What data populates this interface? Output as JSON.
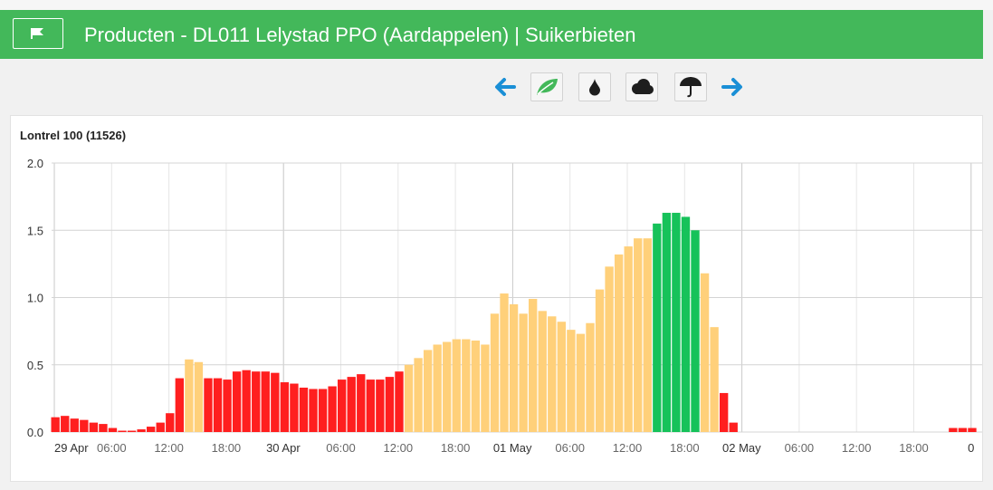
{
  "header": {
    "title": "Producten - DL011 Lelystad PPO (Aardappelen) | Suikerbieten",
    "color": "#43b85a"
  },
  "toolbar": {
    "buttons": [
      "arrow-left-icon",
      "leaf-icon",
      "drop-icon",
      "cloud-icon",
      "umbrella-icon",
      "arrow-right-icon"
    ],
    "arrow_color": "#1a8fd6",
    "leaf_color": "#43b85a"
  },
  "chart_data": {
    "type": "bar",
    "title": "Lontrel 100 (11526)",
    "xlabel": "",
    "ylabel": "",
    "ylim": [
      0,
      2.0
    ],
    "y_ticks": [
      "0.0",
      "0.5",
      "1.0",
      "1.5",
      "2.0"
    ],
    "x_ticks": [
      "29 Apr",
      "06:00",
      "12:00",
      "18:00",
      "30 Apr",
      "06:00",
      "12:00",
      "18:00",
      "01 May",
      "06:00",
      "12:00",
      "18:00",
      "02 May",
      "06:00",
      "12:00",
      "18:00",
      "0"
    ],
    "x_unit": "hours since 29 Apr 00:00",
    "grid": true,
    "colors": {
      "red": "#ff1f1f",
      "orange": "#ffd07a",
      "green": "#16c25a"
    },
    "bars": [
      {
        "h": 0,
        "v": 0.11,
        "c": "red"
      },
      {
        "h": 1,
        "v": 0.12,
        "c": "red"
      },
      {
        "h": 2,
        "v": 0.1,
        "c": "red"
      },
      {
        "h": 3,
        "v": 0.09,
        "c": "red"
      },
      {
        "h": 4,
        "v": 0.07,
        "c": "red"
      },
      {
        "h": 5,
        "v": 0.06,
        "c": "red"
      },
      {
        "h": 6,
        "v": 0.03,
        "c": "red"
      },
      {
        "h": 7,
        "v": 0.01,
        "c": "red"
      },
      {
        "h": 8,
        "v": 0.01,
        "c": "red"
      },
      {
        "h": 9,
        "v": 0.02,
        "c": "red"
      },
      {
        "h": 10,
        "v": 0.04,
        "c": "red"
      },
      {
        "h": 11,
        "v": 0.07,
        "c": "red"
      },
      {
        "h": 12,
        "v": 0.14,
        "c": "red"
      },
      {
        "h": 13,
        "v": 0.4,
        "c": "red"
      },
      {
        "h": 14,
        "v": 0.54,
        "c": "orange"
      },
      {
        "h": 15,
        "v": 0.52,
        "c": "orange"
      },
      {
        "h": 16,
        "v": 0.4,
        "c": "red"
      },
      {
        "h": 17,
        "v": 0.4,
        "c": "red"
      },
      {
        "h": 18,
        "v": 0.39,
        "c": "red"
      },
      {
        "h": 19,
        "v": 0.45,
        "c": "red"
      },
      {
        "h": 20,
        "v": 0.46,
        "c": "red"
      },
      {
        "h": 21,
        "v": 0.45,
        "c": "red"
      },
      {
        "h": 22,
        "v": 0.45,
        "c": "red"
      },
      {
        "h": 23,
        "v": 0.44,
        "c": "red"
      },
      {
        "h": 24,
        "v": 0.37,
        "c": "red"
      },
      {
        "h": 25,
        "v": 0.36,
        "c": "red"
      },
      {
        "h": 26,
        "v": 0.33,
        "c": "red"
      },
      {
        "h": 27,
        "v": 0.32,
        "c": "red"
      },
      {
        "h": 28,
        "v": 0.32,
        "c": "red"
      },
      {
        "h": 29,
        "v": 0.34,
        "c": "red"
      },
      {
        "h": 30,
        "v": 0.39,
        "c": "red"
      },
      {
        "h": 31,
        "v": 0.41,
        "c": "red"
      },
      {
        "h": 32,
        "v": 0.43,
        "c": "red"
      },
      {
        "h": 33,
        "v": 0.39,
        "c": "red"
      },
      {
        "h": 34,
        "v": 0.39,
        "c": "red"
      },
      {
        "h": 35,
        "v": 0.41,
        "c": "red"
      },
      {
        "h": 36,
        "v": 0.45,
        "c": "red"
      },
      {
        "h": 37,
        "v": 0.5,
        "c": "orange"
      },
      {
        "h": 38,
        "v": 0.55,
        "c": "orange"
      },
      {
        "h": 39,
        "v": 0.61,
        "c": "orange"
      },
      {
        "h": 40,
        "v": 0.65,
        "c": "orange"
      },
      {
        "h": 41,
        "v": 0.67,
        "c": "orange"
      },
      {
        "h": 42,
        "v": 0.69,
        "c": "orange"
      },
      {
        "h": 43,
        "v": 0.69,
        "c": "orange"
      },
      {
        "h": 44,
        "v": 0.68,
        "c": "orange"
      },
      {
        "h": 45,
        "v": 0.65,
        "c": "orange"
      },
      {
        "h": 46,
        "v": 0.88,
        "c": "orange"
      },
      {
        "h": 47,
        "v": 1.03,
        "c": "orange"
      },
      {
        "h": 48,
        "v": 0.95,
        "c": "orange"
      },
      {
        "h": 49,
        "v": 0.88,
        "c": "orange"
      },
      {
        "h": 50,
        "v": 0.99,
        "c": "orange"
      },
      {
        "h": 51,
        "v": 0.9,
        "c": "orange"
      },
      {
        "h": 52,
        "v": 0.86,
        "c": "orange"
      },
      {
        "h": 53,
        "v": 0.82,
        "c": "orange"
      },
      {
        "h": 54,
        "v": 0.76,
        "c": "orange"
      },
      {
        "h": 55,
        "v": 0.73,
        "c": "orange"
      },
      {
        "h": 56,
        "v": 0.81,
        "c": "orange"
      },
      {
        "h": 57,
        "v": 1.06,
        "c": "orange"
      },
      {
        "h": 58,
        "v": 1.23,
        "c": "orange"
      },
      {
        "h": 59,
        "v": 1.32,
        "c": "orange"
      },
      {
        "h": 60,
        "v": 1.38,
        "c": "orange"
      },
      {
        "h": 61,
        "v": 1.44,
        "c": "orange"
      },
      {
        "h": 62,
        "v": 1.44,
        "c": "orange"
      },
      {
        "h": 63,
        "v": 1.55,
        "c": "green"
      },
      {
        "h": 64,
        "v": 1.63,
        "c": "green"
      },
      {
        "h": 65,
        "v": 1.63,
        "c": "green"
      },
      {
        "h": 66,
        "v": 1.6,
        "c": "green"
      },
      {
        "h": 67,
        "v": 1.5,
        "c": "green"
      },
      {
        "h": 68,
        "v": 1.18,
        "c": "orange"
      },
      {
        "h": 69,
        "v": 0.78,
        "c": "orange"
      },
      {
        "h": 70,
        "v": 0.29,
        "c": "red"
      },
      {
        "h": 71,
        "v": 0.07,
        "c": "red"
      },
      {
        "h": 94,
        "v": 0.03,
        "c": "red"
      },
      {
        "h": 95,
        "v": 0.03,
        "c": "red"
      },
      {
        "h": 96,
        "v": 0.03,
        "c": "red"
      }
    ]
  }
}
